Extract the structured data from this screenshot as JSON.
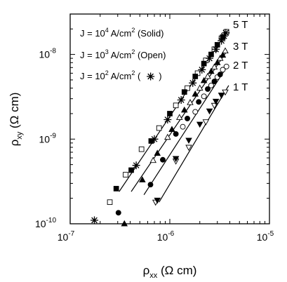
{
  "chart_data": {
    "type": "scatter",
    "xscale": "log",
    "yscale": "log",
    "xlim": [
      1e-07,
      1e-05
    ],
    "ylim": [
      1e-10,
      3e-08
    ],
    "xlabel": {
      "main": "ρ",
      "sub": "xx",
      "unit": " (Ω cm)"
    },
    "ylabel": {
      "main": "ρ",
      "sub": "xy",
      "unit": " (Ω cm)"
    },
    "x_ticks": [
      {
        "value": 1e-07,
        "base": "10",
        "exp": "-7"
      },
      {
        "value": 1e-06,
        "base": "10",
        "exp": "-6"
      },
      {
        "value": 1e-05,
        "base": "10",
        "exp": "-5"
      }
    ],
    "y_ticks": [
      {
        "value": 1e-10,
        "base": "10",
        "exp": "-10"
      },
      {
        "value": 1e-09,
        "base": "10",
        "exp": "-9"
      },
      {
        "value": 1e-08,
        "base": "10",
        "exp": "-8"
      }
    ],
    "legend": [
      {
        "pre": "J = 10",
        "exp": "4",
        "post": " A/cm",
        "exp2": "2",
        "tail": " (Solid)"
      },
      {
        "pre": "J = 10",
        "exp": "3",
        "post": " A/cm",
        "exp2": "2",
        "tail": " (Open)"
      },
      {
        "pre": "J = 10",
        "exp": "2",
        "post": " A/cm",
        "exp2": "2",
        "tail": " (",
        "marker": "star",
        "close": ")"
      }
    ],
    "fields": [
      {
        "label": "5 T",
        "marker": "square",
        "fit": [
          [
            3.1e-07,
            2.4e-10
          ],
          [
            3.75e-06,
            1.85e-08
          ]
        ],
        "solid": [
          [
            2.9e-07,
            2.6e-10
          ],
          [
            4.1e-07,
            4.3e-10
          ],
          [
            6.5e-07,
            9.5e-10
          ],
          [
            1e-06,
            2e-09
          ],
          [
            1.4e-06,
            3.6e-09
          ],
          [
            1.8e-06,
            5.5e-09
          ],
          [
            2.2e-06,
            7.8e-09
          ],
          [
            2.6e-06,
            1e-08
          ],
          [
            3e-06,
            1.3e-08
          ],
          [
            3.4e-06,
            1.6e-08
          ]
        ],
        "open": [
          [
            2.5e-07,
            1.8e-10
          ],
          [
            3.6e-07,
            3.8e-10
          ],
          [
            5.2e-07,
            7.6e-10
          ],
          [
            7.8e-07,
            1.35e-09
          ],
          [
            1.15e-06,
            2.5e-09
          ],
          [
            1.5e-06,
            4e-09
          ],
          [
            1.9e-06,
            6e-09
          ],
          [
            2.3e-06,
            8.5e-09
          ],
          [
            2.8e-06,
            1.15e-08
          ],
          [
            3.3e-06,
            1.55e-08
          ],
          [
            3.7e-06,
            1.85e-08
          ]
        ],
        "star": [
          [
            1.75e-07,
            1.1e-10
          ],
          [
            4.6e-07,
            4.9e-10
          ],
          [
            7e-07,
            1e-09
          ],
          [
            9.5e-07,
            1.7e-09
          ],
          [
            1.3e-06,
            2.9e-09
          ],
          [
            1.7e-06,
            4.6e-09
          ],
          [
            2.1e-06,
            6.6e-09
          ],
          [
            2.5e-06,
            9e-09
          ],
          [
            2.9e-06,
            1.15e-08
          ],
          [
            3.3e-06,
            1.45e-08
          ],
          [
            3.5e-06,
            1.65e-08
          ],
          [
            3.65e-06,
            1.8e-08
          ]
        ]
      },
      {
        "label": "3 T",
        "marker": "triangle",
        "fit": [
          [
            4.1e-07,
            2.4e-10
          ],
          [
            3.75e-06,
            1.1e-08
          ]
        ],
        "solid": [
          [
            3.5e-07,
            1e-10
          ],
          [
            5.3e-07,
            3.3e-10
          ],
          [
            7.5e-07,
            6.8e-10
          ],
          [
            1.05e-06,
            1.3e-09
          ],
          [
            1.4e-06,
            2.2e-09
          ],
          [
            1.8e-06,
            3.4e-09
          ],
          [
            2.2e-06,
            4.9e-09
          ],
          [
            2.6e-06,
            6.3e-09
          ],
          [
            3e-06,
            8e-09
          ],
          [
            3.4e-06,
            9.8e-09
          ]
        ],
        "open": [
          [
            6.8e-07,
            5.6e-10
          ],
          [
            9.5e-07,
            1.05e-09
          ],
          [
            1.25e-06,
            1.8e-09
          ],
          [
            1.6e-06,
            2.7e-09
          ],
          [
            2e-06,
            4e-09
          ],
          [
            2.4e-06,
            5.5e-09
          ],
          [
            2.8e-06,
            7.1e-09
          ],
          [
            3.2e-06,
            9e-09
          ],
          [
            3.6e-06,
            1.1e-08
          ]
        ],
        "star": []
      },
      {
        "label": "2 T",
        "marker": "circle",
        "fit": [
          [
            5.5e-07,
            2.2e-10
          ],
          [
            3.75e-06,
            7.2e-09
          ]
        ],
        "solid": [
          [
            3.05e-07,
            1.35e-10
          ],
          [
            6.4e-07,
            2.9e-10
          ],
          [
            8.5e-07,
            5.7e-10
          ],
          [
            1.15e-06,
            1.15e-09
          ],
          [
            1.5e-06,
            1.75e-09
          ],
          [
            1.95e-06,
            2.75e-09
          ],
          [
            2.4e-06,
            3.9e-09
          ],
          [
            2.8e-06,
            4.8e-09
          ],
          [
            3.2e-06,
            5.8e-09
          ]
        ],
        "open": [
          [
            1.35e-06,
            1.4e-09
          ],
          [
            1.8e-06,
            2.1e-09
          ],
          [
            2.2e-06,
            3.2e-09
          ],
          [
            2.6e-06,
            4.3e-09
          ],
          [
            3e-06,
            5.4e-09
          ],
          [
            3.4e-06,
            6.6e-09
          ],
          [
            3.7e-06,
            7.2e-09
          ]
        ],
        "star": []
      },
      {
        "label": "1 T",
        "marker": "inverted-triangle",
        "fit": [
          [
            7.8e-07,
            1.8e-10
          ],
          [
            3.9e-06,
            4.3e-09
          ]
        ],
        "solid": [
          [
            7.5e-07,
            1.9e-10
          ],
          [
            1.15e-06,
            5.9e-10
          ],
          [
            1.55e-06,
            9.7e-10
          ],
          [
            2e-06,
            1.5e-09
          ],
          [
            2.5e-06,
            2.15e-09
          ],
          [
            2.9e-06,
            2.8e-09
          ],
          [
            3.3e-06,
            3.3e-09
          ]
        ],
        "open": [
          [
            7.2e-07,
            1.8e-10
          ],
          [
            1.15e-06,
            5.5e-10
          ],
          [
            1.55e-06,
            8e-10
          ],
          [
            2.3e-06,
            1.6e-09
          ],
          [
            2.8e-06,
            2.5e-09
          ],
          [
            3.3e-06,
            3.3e-09
          ],
          [
            3.6e-06,
            3.6e-09
          ]
        ],
        "star": []
      }
    ]
  }
}
